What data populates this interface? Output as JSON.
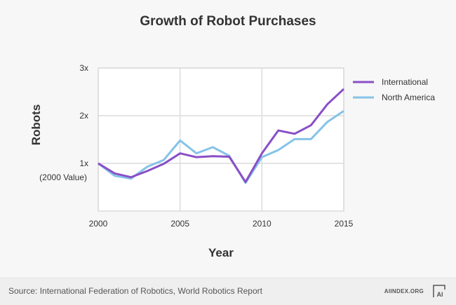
{
  "chart_data": {
    "type": "line",
    "title": "Growth of Robot Purchases",
    "xlabel": "Year",
    "ylabel": "Robots",
    "x": [
      2000,
      2001,
      2002,
      2003,
      2004,
      2005,
      2006,
      2007,
      2008,
      2009,
      2010,
      2011,
      2012,
      2013,
      2014,
      2015
    ],
    "xlim": [
      2000,
      2015
    ],
    "ylim": [
      0,
      3
    ],
    "x_ticks": [
      2000,
      2005,
      2010,
      2015
    ],
    "x_tick_labels": [
      "2000",
      "2005",
      "2010",
      "2015"
    ],
    "y_ticks": [
      1,
      2,
      3
    ],
    "y_tick_labels": [
      "1x",
      "2x",
      "3x"
    ],
    "y_annotation": "(2000 Value)",
    "grid": true,
    "legend_position": "right",
    "series": [
      {
        "name": "International",
        "color": "#8a4fc7",
        "values": [
          1.0,
          0.79,
          0.71,
          0.84,
          0.99,
          1.21,
          1.13,
          1.15,
          1.14,
          0.61,
          1.21,
          1.69,
          1.62,
          1.8,
          2.24,
          2.56
        ]
      },
      {
        "name": "North America",
        "color": "#86c3e8",
        "values": [
          1.0,
          0.74,
          0.68,
          0.93,
          1.07,
          1.48,
          1.21,
          1.34,
          1.16,
          0.59,
          1.13,
          1.28,
          1.51,
          1.51,
          1.87,
          2.1
        ]
      }
    ]
  },
  "footer": {
    "source": "Source: International Federation of Robotics, World Robotics Report",
    "site": "AIINDEX.ORG",
    "logo_text": "AI"
  }
}
